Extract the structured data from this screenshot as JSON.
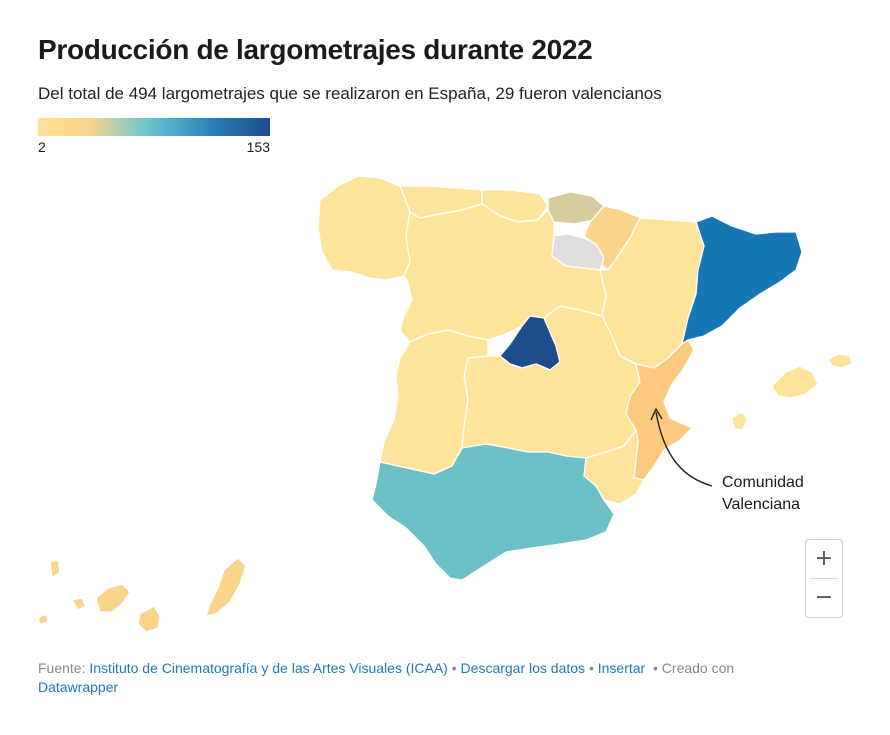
{
  "header": {
    "title": "Producción de largometrajes durante 2022",
    "subtitle": "Del total de 494 largometrajes que se realizaron en España, 29 fueron valencianos"
  },
  "legend": {
    "min_label": "2",
    "max_label": "153",
    "colors": [
      "#fee39a",
      "#fbd48b",
      "#86cbc6",
      "#57b3cc",
      "#2c7fb8",
      "#1e4d8c"
    ]
  },
  "map": {
    "no_data_color": "#dedede",
    "regions": [
      {
        "name": "Galicia",
        "color": "#fee39a"
      },
      {
        "name": "Asturias",
        "color": "#fee39a"
      },
      {
        "name": "Cantabria",
        "color": "#fee39a"
      },
      {
        "name": "País Vasco",
        "color": "#d8cc9e"
      },
      {
        "name": "Navarra",
        "color": "#fbd48b"
      },
      {
        "name": "La Rioja",
        "color": "#dedede"
      },
      {
        "name": "Aragón",
        "color": "#fee39a"
      },
      {
        "name": "Cataluña",
        "color": "#1777b5"
      },
      {
        "name": "Castilla y León",
        "color": "#fee39a"
      },
      {
        "name": "Madrid",
        "color": "#1e4d8c"
      },
      {
        "name": "Castilla-La Mancha",
        "color": "#fee39a"
      },
      {
        "name": "Extremadura",
        "color": "#fee39a"
      },
      {
        "name": "Comunidad Valenciana",
        "color": "#fbca7f"
      },
      {
        "name": "Región de Murcia",
        "color": "#fee39a"
      },
      {
        "name": "Andalucía",
        "color": "#6cc0c6"
      },
      {
        "name": "Islas Baleares",
        "color": "#fee39a"
      },
      {
        "name": "Canarias",
        "color": "#fbd48b"
      }
    ]
  },
  "annotation": {
    "line1": "Comunidad",
    "line2": "Valenciana"
  },
  "zoom": {
    "in_label": "+",
    "out_label": "−"
  },
  "footer": {
    "source_prefix": "Fuente:",
    "source_link": "Instituto de Cinematografía y de las Artes Visuales (ICAA)",
    "sep": "•",
    "download": "Descargar los datos",
    "embed": "Insertar",
    "created_with": "Creado con",
    "tool": "Datawrapper"
  }
}
